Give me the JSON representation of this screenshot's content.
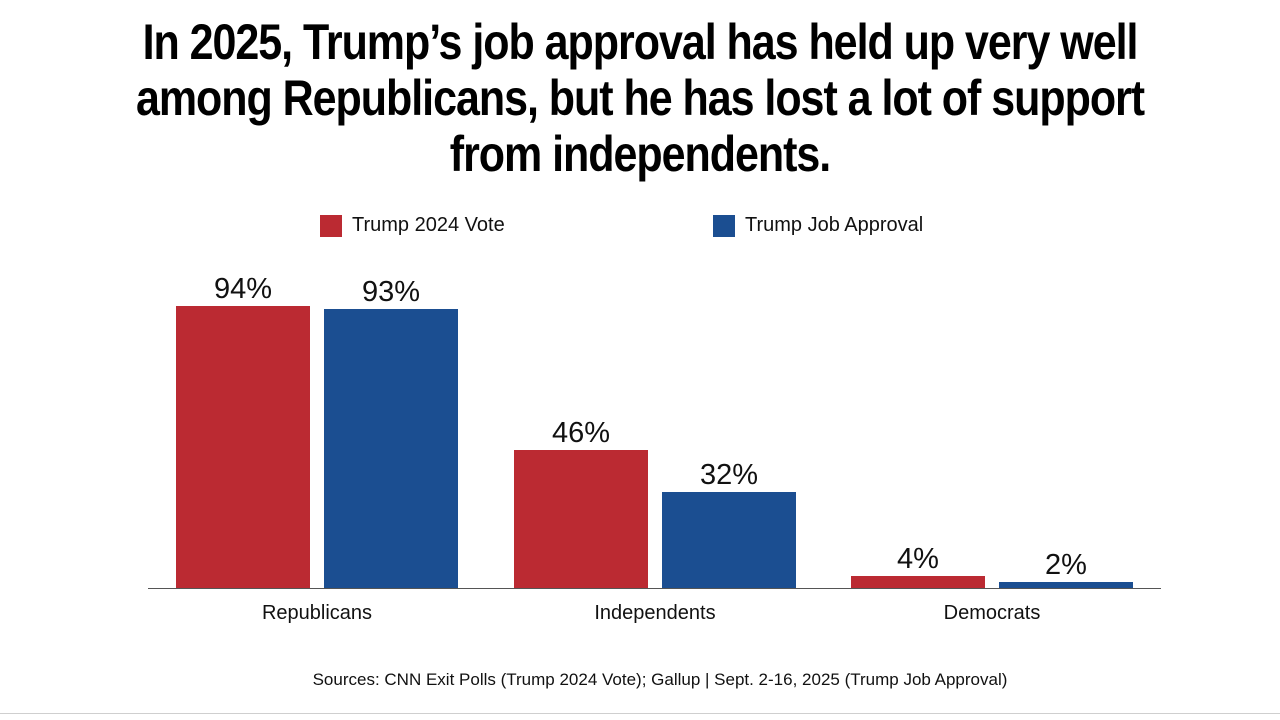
{
  "title_lines": [
    "In 2025, Trump’s job approval has held up very well",
    "among Republicans, but he has lost a lot of support",
    "from independents."
  ],
  "source": "Sources: CNN Exit Polls (Trump 2024 Vote); Gallup | Sept. 2-16, 2025 (Trump Job Approval)",
  "colors": {
    "vote": "#bb2a32",
    "approval": "#1b4e91",
    "axis": "#555555"
  },
  "chart_data": {
    "type": "bar",
    "title": "In 2025, Trump’s job approval has held up very well among Republicans, but he has lost a lot of support from independents.",
    "categories": [
      "Republicans",
      "Independents",
      "Democrats"
    ],
    "series": [
      {
        "name": "Trump 2024 Vote",
        "values": [
          94,
          46,
          4
        ],
        "labels": [
          "94%",
          "46%",
          "4%"
        ]
      },
      {
        "name": "Trump Job Approval",
        "values": [
          93,
          32,
          2
        ],
        "labels": [
          "93%",
          "32%",
          "2%"
        ]
      }
    ],
    "xlabel": "",
    "ylabel": "",
    "ylim": [
      0,
      100
    ],
    "grid": false,
    "legend": "top-center"
  }
}
